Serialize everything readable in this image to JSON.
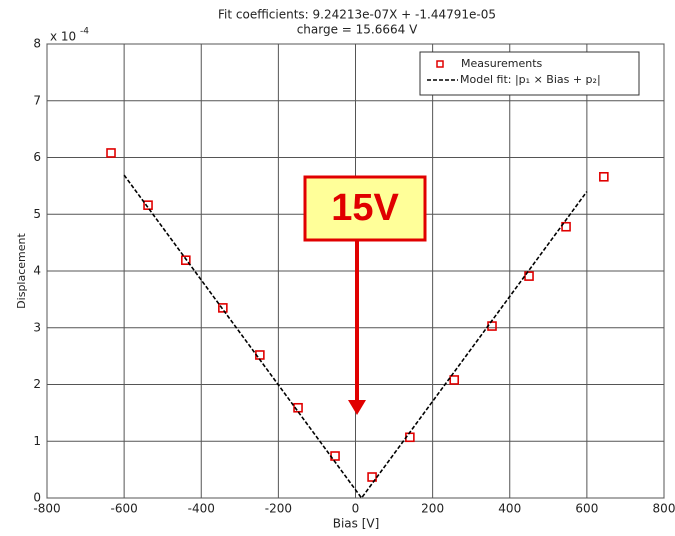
{
  "chart_data": {
    "type": "scatter",
    "title": "Fit coefficients: 9.24213e-07X + -1.44791e-05",
    "subtitle": "charge = 15.6664 V",
    "x_label": "Bias [V]",
    "y_label": "Displacement",
    "y_multiplier": {
      "base": "x 10",
      "exponent": "-4"
    },
    "annotation": "15V",
    "xlim": [
      -800,
      800
    ],
    "xticks": [
      -800,
      -600,
      -400,
      -200,
      0,
      200,
      400,
      600,
      800
    ],
    "ylim": [
      0,
      8
    ],
    "yticks": [
      0,
      1,
      2,
      3,
      4,
      5,
      6,
      7,
      8
    ],
    "grid": true,
    "legend": "upper right",
    "series": [
      {
        "name": "Measurements",
        "type": "scatter",
        "color": "#e00000",
        "x": [
          -634,
          -538,
          -440,
          -344,
          -248,
          -149,
          -53,
          43,
          141,
          256,
          354,
          450,
          546,
          644
        ],
        "values": [
          6.08,
          5.16,
          4.19,
          3.35,
          2.52,
          1.59,
          0.74,
          0.37,
          1.07,
          2.08,
          3.03,
          3.91,
          4.78,
          5.66
        ]
      },
      {
        "name": "Model fit: |p₁ × Bias + p₂|",
        "type": "line",
        "color": "#000000",
        "x": [
          -600,
          15.67,
          600
        ],
        "values": [
          5.69,
          0,
          5.4
        ]
      }
    ]
  }
}
